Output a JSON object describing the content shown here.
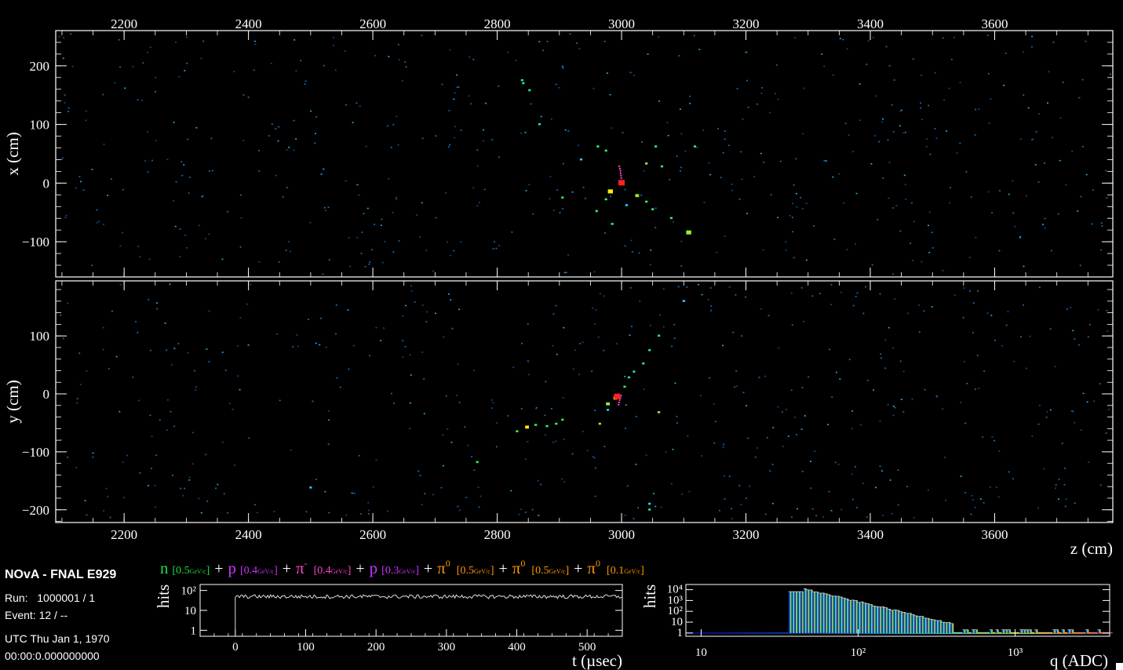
{
  "info": {
    "title": "NOvA - FNAL E929",
    "run_label": "Run:",
    "run": "1000001 / 1",
    "event_label": "Event:",
    "event": "12 / --",
    "date": "UTC Thu Jan 1, 1970",
    "time": "00:00:0.000000000"
  },
  "colors": {
    "background": "#000000",
    "frame": "#ffffff",
    "noise_hit": "#1f8fd8",
    "n": "#22dd44",
    "p": "#cc33ff",
    "pi_minus": "#ff44cc",
    "pi0": "#ff9900",
    "vertex": "#ff2222"
  },
  "particles": [
    {
      "symbol": "n",
      "sup": "",
      "energy": "[0.5",
      "unit": "GeV/c",
      "close": "]",
      "color": "#22dd44"
    },
    {
      "symbol": "p",
      "sup": "",
      "energy": "[0.4",
      "unit": "GeV/c",
      "close": "]",
      "color": "#cc33ff"
    },
    {
      "symbol": "π",
      "sup": "-",
      "energy": "[0.4",
      "unit": "GeV/c",
      "close": "]",
      "color": "#ff44cc"
    },
    {
      "symbol": "p",
      "sup": "",
      "energy": "[0.3",
      "unit": "GeV/c",
      "close": "]",
      "color": "#cc33ff"
    },
    {
      "symbol": "π",
      "sup": "0",
      "energy": "[0.5",
      "unit": "GeV/c",
      "close": "]",
      "color": "#ff9900"
    },
    {
      "symbol": "π",
      "sup": "0",
      "energy": "[0.5",
      "unit": "GeV/c",
      "close": "]",
      "color": "#ff9900"
    },
    {
      "symbol": "π",
      "sup": "0",
      "energy": "[0.1",
      "unit": "GeV/c",
      "close": "]",
      "color": "#ff9900"
    }
  ],
  "plus": "+",
  "chart_data": [
    {
      "id": "xz-view",
      "type": "scatter",
      "xlabel": "",
      "ylabel": "x (cm)",
      "xlim": [
        2090,
        3790
      ],
      "ylim": [
        -160,
        260
      ],
      "xticks": [
        "2200",
        "2400",
        "2600",
        "2800",
        "3000",
        "3200",
        "3400",
        "3600"
      ],
      "yticks": [
        "200",
        "100",
        "0",
        "−100"
      ],
      "ytick_values": [
        200,
        100,
        0,
        -100
      ],
      "xtick_values": [
        2200,
        2400,
        2600,
        2800,
        3000,
        3200,
        3400,
        3600
      ],
      "hits": [
        {
          "z": 2840,
          "x": 175,
          "c": "#22ddaa",
          "s": 1
        },
        {
          "z": 2842,
          "x": 170,
          "c": "#22ddaa",
          "s": 1
        },
        {
          "z": 2852,
          "x": 158,
          "c": "#22ddaa",
          "s": 1
        },
        {
          "z": 2868,
          "x": 100,
          "c": "#22ddaa",
          "s": 1
        },
        {
          "z": 2962,
          "x": 62,
          "c": "#33ee66",
          "s": 1
        },
        {
          "z": 2975,
          "x": 55,
          "c": "#33ee66",
          "s": 1
        },
        {
          "z": 3055,
          "x": 62,
          "c": "#33ee66",
          "s": 1
        },
        {
          "z": 3118,
          "x": 62,
          "c": "#33ee66",
          "s": 1
        },
        {
          "z": 3040,
          "x": 33,
          "c": "#99ee33",
          "s": 1
        },
        {
          "z": 3065,
          "x": 28,
          "c": "#33ee66",
          "s": 1
        },
        {
          "z": 2982,
          "x": -15,
          "c": "#ffee00",
          "s": 2
        },
        {
          "z": 2975,
          "x": -28,
          "c": "#33ee66",
          "s": 1
        },
        {
          "z": 2960,
          "x": -48,
          "c": "#33ee66",
          "s": 1
        },
        {
          "z": 3025,
          "x": -22,
          "c": "#99ee33",
          "s": 1.5
        },
        {
          "z": 3040,
          "x": -32,
          "c": "#33ee66",
          "s": 1
        },
        {
          "z": 3050,
          "x": -45,
          "c": "#33ee66",
          "s": 1
        },
        {
          "z": 2905,
          "x": -25,
          "c": "#33ee66",
          "s": 1
        },
        {
          "z": 3008,
          "x": -38,
          "c": "#22ccff",
          "s": 1
        },
        {
          "z": 3080,
          "x": -60,
          "c": "#33ee66",
          "s": 1
        },
        {
          "z": 2985,
          "x": -70,
          "c": "#33ee66",
          "s": 1
        },
        {
          "z": 3108,
          "x": -85,
          "c": "#99ee33",
          "s": 2
        },
        {
          "z": 2935,
          "x": 40,
          "c": "#22ccff",
          "s": 1
        }
      ],
      "track": [
        {
          "z": 2996,
          "x": 30
        },
        {
          "z": 2998,
          "x": 22
        },
        {
          "z": 2999,
          "x": 14
        },
        {
          "z": 3000,
          "x": 6
        }
      ],
      "vertex": {
        "z": 3000,
        "x": 0
      }
    },
    {
      "id": "yz-view",
      "type": "scatter",
      "xlabel": "z (cm)",
      "ylabel": "y (cm)",
      "xlim": [
        2090,
        3790
      ],
      "ylim": [
        -222,
        195
      ],
      "xticks": [
        "2200",
        "2400",
        "2600",
        "2800",
        "3000",
        "3200",
        "3400",
        "3600"
      ],
      "yticks": [
        "100",
        "0",
        "−100",
        "−200"
      ],
      "ytick_values": [
        100,
        0,
        -100,
        -200
      ],
      "xtick_values": [
        2200,
        2400,
        2600,
        2800,
        3000,
        3200,
        3400,
        3600
      ],
      "hits": [
        {
          "z": 3100,
          "y": 160,
          "c": "#22ccff",
          "s": 1
        },
        {
          "z": 3060,
          "y": 100,
          "c": "#22ddaa",
          "s": 1
        },
        {
          "z": 3045,
          "y": 75,
          "c": "#22ddaa",
          "s": 1
        },
        {
          "z": 3035,
          "y": 52,
          "c": "#22ddaa",
          "s": 1
        },
        {
          "z": 3020,
          "y": 38,
          "c": "#22ddaa",
          "s": 1
        },
        {
          "z": 3012,
          "y": 28,
          "c": "#22ddaa",
          "s": 1
        },
        {
          "z": 3005,
          "y": 12,
          "c": "#33ee66",
          "s": 1
        },
        {
          "z": 2990,
          "y": -8,
          "c": "#ffee00",
          "s": 1.5
        },
        {
          "z": 2978,
          "y": -18,
          "c": "#99ee33",
          "s": 1.5
        },
        {
          "z": 2978,
          "y": -28,
          "c": "#22ccff",
          "s": 1
        },
        {
          "z": 2965,
          "y": -52,
          "c": "#99ee33",
          "s": 1
        },
        {
          "z": 2905,
          "y": -45,
          "c": "#33ee66",
          "s": 1
        },
        {
          "z": 2895,
          "y": -52,
          "c": "#33ee66",
          "s": 1
        },
        {
          "z": 2880,
          "y": -56,
          "c": "#33ee66",
          "s": 1
        },
        {
          "z": 2848,
          "y": -58,
          "c": "#ffee00",
          "s": 1.5
        },
        {
          "z": 2832,
          "y": -65,
          "c": "#33ee66",
          "s": 1
        },
        {
          "z": 2862,
          "y": -54,
          "c": "#33ee66",
          "s": 1
        },
        {
          "z": 2768,
          "y": -118,
          "c": "#33ee66",
          "s": 1
        },
        {
          "z": 3060,
          "y": -32,
          "c": "#99ee33",
          "s": 1
        },
        {
          "z": 3045,
          "y": -190,
          "c": "#22ccff",
          "s": 1
        },
        {
          "z": 3045,
          "y": -200,
          "c": "#22ddaa",
          "s": 1
        },
        {
          "z": 2500,
          "y": -162,
          "c": "#22ccff",
          "s": 1
        }
      ],
      "track": [
        {
          "z": 2995,
          "y": -20
        },
        {
          "z": 2997,
          "y": -10
        },
        {
          "z": 3000,
          "y": -2
        }
      ],
      "vertex": {
        "z": 2993,
        "y": -5
      }
    },
    {
      "id": "time-hist",
      "type": "line",
      "ylabel": "hits",
      "xlabel": "t (µsec)",
      "log_y": true,
      "xlim": [
        -50,
        550
      ],
      "ylim": [
        0.5,
        200
      ],
      "xticks": [
        "0",
        "100",
        "200",
        "300",
        "400",
        "500"
      ],
      "xtick_values": [
        0,
        100,
        200,
        300,
        400,
        500
      ],
      "yticks": [
        "1",
        "10",
        "10²"
      ],
      "ytick_values": [
        1,
        10,
        100
      ],
      "level": 50,
      "step_at": 0
    },
    {
      "id": "charge-hist",
      "type": "bar",
      "ylabel": "hits",
      "xlabel": "q (ADC)",
      "log_x": true,
      "log_y": true,
      "xlim": [
        8,
        4000
      ],
      "ylim": [
        0.5,
        30000
      ],
      "xticks": [
        "10",
        "10²",
        "10³"
      ],
      "xtick_values": [
        10,
        100,
        1000
      ],
      "yticks": [
        "1",
        "10",
        "10²",
        "10³",
        "10⁴"
      ],
      "ytick_values": [
        1,
        10,
        100,
        1000,
        10000
      ],
      "start_q": 36,
      "peak_q": 44,
      "peak_count": 12000
    }
  ]
}
